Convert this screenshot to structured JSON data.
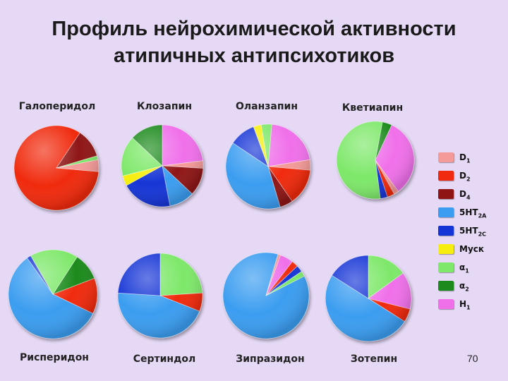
{
  "title_line1": "Профиль нейрохимической активности",
  "title_line2": "атипичных антипсихотиков",
  "page_number": "70",
  "legend": [
    {
      "label": "D",
      "sub": "1",
      "color": "#f49a98"
    },
    {
      "label": "D",
      "sub": "2",
      "color": "#f02a10"
    },
    {
      "label": "D",
      "sub": "4",
      "color": "#8f1414"
    },
    {
      "label": "5HT",
      "sub": "2A",
      "color": "#3a9df0"
    },
    {
      "label": "5HT",
      "sub": "2C",
      "color": "#1434d6"
    },
    {
      "label": "Муск",
      "sub": "",
      "color": "#f6ee0e"
    },
    {
      "label": "α",
      "sub": "1",
      "color": "#7ee86a"
    },
    {
      "label": "α",
      "sub": "2",
      "color": "#1c8a1c"
    },
    {
      "label": "H",
      "sub": "1",
      "color": "#f070ea"
    }
  ],
  "chart_data": [
    {
      "type": "pie",
      "title": "Галоперидол",
      "slices": [
        {
          "name": "D2",
          "value": 83
        },
        {
          "name": "D4",
          "value": 11
        },
        {
          "name": "α1",
          "value": 1.5
        },
        {
          "name": "D1",
          "value": 4.5
        }
      ]
    },
    {
      "type": "pie",
      "title": "Клозапин",
      "slices": [
        {
          "name": "H1",
          "value": 23
        },
        {
          "name": "D1",
          "value": 3
        },
        {
          "name": "D4",
          "value": 11
        },
        {
          "name": "5HT2A",
          "value": 10
        },
        {
          "name": "5HT2C",
          "value": 20
        },
        {
          "name": "Муск",
          "value": 4
        },
        {
          "name": "α1",
          "value": 16
        },
        {
          "name": "α2",
          "value": 13
        }
      ]
    },
    {
      "type": "pie",
      "title": "Оланзапин",
      "slices": [
        {
          "name": "H1",
          "value": 21
        },
        {
          "name": "D1",
          "value": 4
        },
        {
          "name": "D2",
          "value": 14
        },
        {
          "name": "D4",
          "value": 5
        },
        {
          "name": "5HT2A",
          "value": 39
        },
        {
          "name": "5HT2C",
          "value": 10
        },
        {
          "name": "Муск",
          "value": 3
        },
        {
          "name": "α1",
          "value": 4
        }
      ]
    },
    {
      "type": "pie",
      "title": "Кветиапин",
      "slices": [
        {
          "name": "H1",
          "value": 33
        },
        {
          "name": "D1",
          "value": 2
        },
        {
          "name": "D2",
          "value": 3
        },
        {
          "name": "5HT2C",
          "value": 3
        },
        {
          "name": "α1",
          "value": 55
        },
        {
          "name": "α2",
          "value": 4
        }
      ]
    },
    {
      "type": "pie",
      "title": "Рисперидон",
      "slices": [
        {
          "name": "α2",
          "value": 10
        },
        {
          "name": "D2",
          "value": 13
        },
        {
          "name": "5HT2A",
          "value": 58
        },
        {
          "name": "5HT2C",
          "value": 1.5
        },
        {
          "name": "α1",
          "value": 17.5
        }
      ]
    },
    {
      "type": "pie",
      "title": "Сертиндол",
      "slices": [
        {
          "name": "α1",
          "value": 24
        },
        {
          "name": "D2",
          "value": 7
        },
        {
          "name": "5HT2A",
          "value": 45
        },
        {
          "name": "5HT2C",
          "value": 24
        }
      ]
    },
    {
      "type": "pie",
      "title": "Зипразидон",
      "slices": [
        {
          "name": "5HT2A",
          "value": 87
        },
        {
          "name": "D1",
          "value": 1
        },
        {
          "name": "H1",
          "value": 5
        },
        {
          "name": "D2",
          "value": 2.5
        },
        {
          "name": "5HT2C",
          "value": 2.5
        },
        {
          "name": "α1",
          "value": 2
        }
      ]
    },
    {
      "type": "pie",
      "title": "Зотепин",
      "slices": [
        {
          "name": "α1",
          "value": 15
        },
        {
          "name": "H1",
          "value": 14
        },
        {
          "name": "D2",
          "value": 5
        },
        {
          "name": "5HT2A",
          "value": 50
        },
        {
          "name": "5HT2C",
          "value": 16
        }
      ]
    }
  ]
}
